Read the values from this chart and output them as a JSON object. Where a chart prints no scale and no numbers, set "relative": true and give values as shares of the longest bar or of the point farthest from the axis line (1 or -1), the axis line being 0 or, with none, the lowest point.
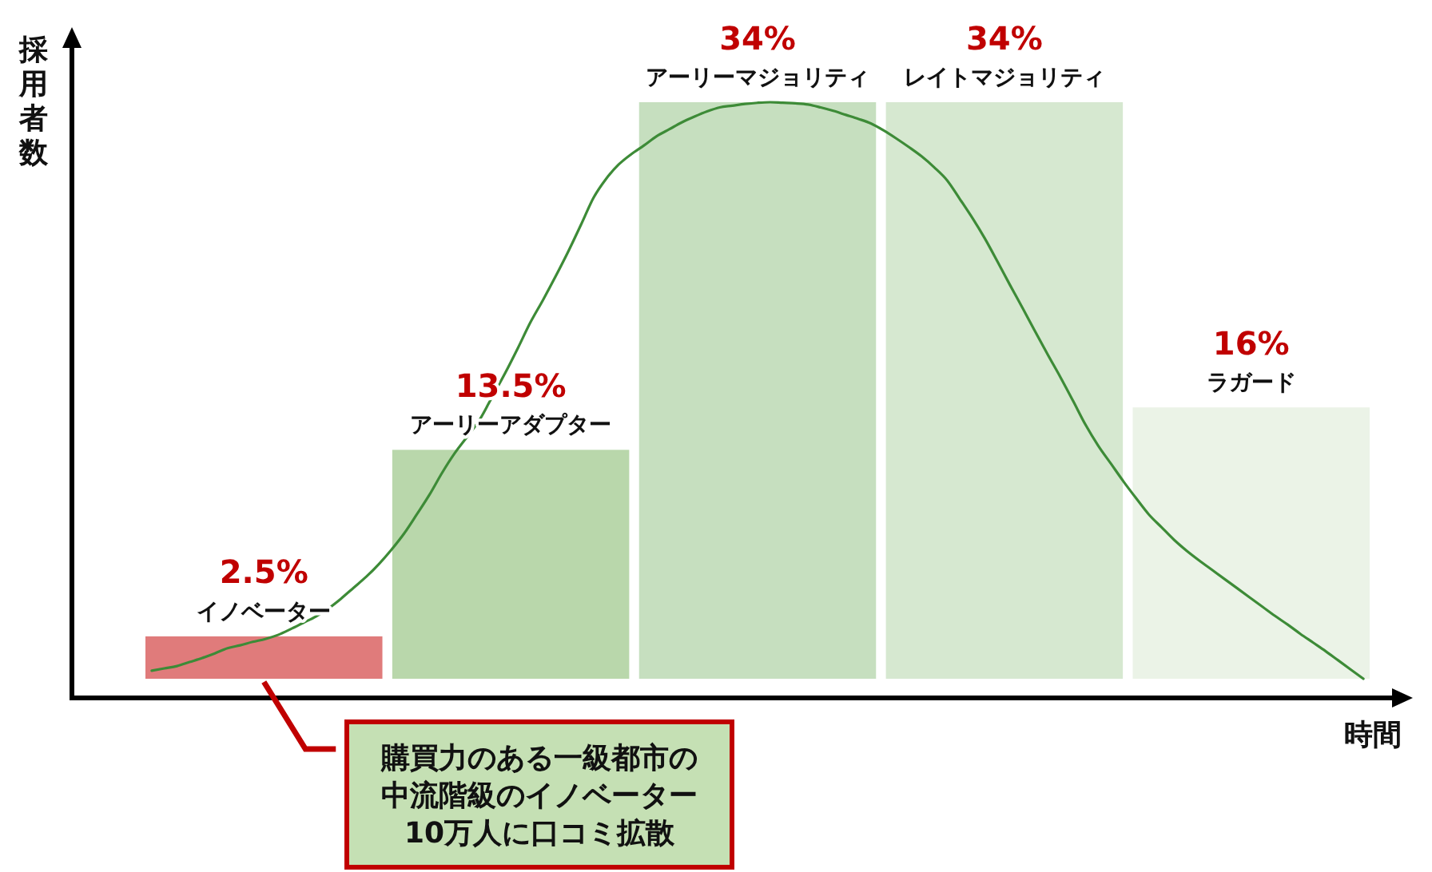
{
  "chart_data": [
    {
      "type": "bar",
      "categories": [
        "イノベーター",
        "アーリーアダプター",
        "アーリーマジョリティ",
        "レイトマジョリティ",
        "ラガード"
      ],
      "values": [
        2.5,
        13.5,
        34,
        34,
        16
      ],
      "colors": [
        "#e07b7b",
        "#b9d7ab",
        "#c6dfbf",
        "#d6e8d0",
        "#ebf3e7"
      ],
      "value_labels": [
        "2.5%",
        "13.5%",
        "34%",
        "34%",
        "16%"
      ],
      "xlabel": "時間",
      "ylabel": "採用者数",
      "annotations": [
        "購買力のある一級都市の中流階級のイノベーター10万人に口コミ拡散"
      ]
    },
    {
      "type": "line",
      "relative": true,
      "color": "#3d8b37",
      "categories": [
        null,
        null,
        null,
        null,
        null,
        null,
        null,
        null,
        null,
        null,
        null,
        null,
        null,
        null,
        null,
        null,
        null,
        null,
        null,
        null,
        null,
        null,
        null,
        null,
        null,
        null,
        null,
        null,
        null,
        null,
        null,
        null,
        null,
        null,
        null,
        null,
        null,
        null,
        null,
        null,
        null,
        null,
        null,
        null,
        null,
        null,
        null,
        null,
        null,
        null,
        null,
        null,
        null,
        null,
        null,
        null,
        null,
        null,
        null,
        null,
        null,
        null,
        null,
        null,
        null,
        null,
        null,
        null,
        null,
        null,
        null,
        null,
        null,
        null,
        null,
        null,
        null,
        null,
        null,
        null,
        null,
        null,
        null,
        null,
        null,
        null,
        null,
        null,
        null,
        null,
        null,
        null,
        null,
        null,
        null,
        null,
        null
      ],
      "values": [
        0.014,
        0.018,
        0.022,
        0.029,
        0.036,
        0.044,
        0.053,
        0.058,
        0.064,
        0.069,
        0.076,
        0.086,
        0.097,
        0.108,
        0.122,
        0.139,
        0.158,
        0.177,
        0.199,
        0.224,
        0.252,
        0.285,
        0.319,
        0.357,
        0.391,
        0.42,
        0.45,
        0.49,
        0.53,
        0.573,
        0.618,
        0.657,
        0.698,
        0.741,
        0.787,
        0.834,
        0.867,
        0.892,
        0.91,
        0.925,
        0.941,
        0.953,
        0.965,
        0.975,
        0.984,
        0.991,
        0.994,
        0.997,
        0.999,
        1,
        0.999,
        0.998,
        0.996,
        0.991,
        0.985,
        0.978,
        0.971,
        0.963,
        0.951,
        0.937,
        0.922,
        0.906,
        0.887,
        0.865,
        0.833,
        0.8,
        0.764,
        0.724,
        0.683,
        0.643,
        0.602,
        0.562,
        0.523,
        0.482,
        0.44,
        0.404,
        0.373,
        0.342,
        0.313,
        0.285,
        0.263,
        0.241,
        0.222,
        0.205,
        0.189,
        0.173,
        0.157,
        0.141,
        0.125,
        0.109,
        0.094,
        0.078,
        0.063,
        0.048,
        0.032,
        0.016,
        0
      ]
    }
  ]
}
